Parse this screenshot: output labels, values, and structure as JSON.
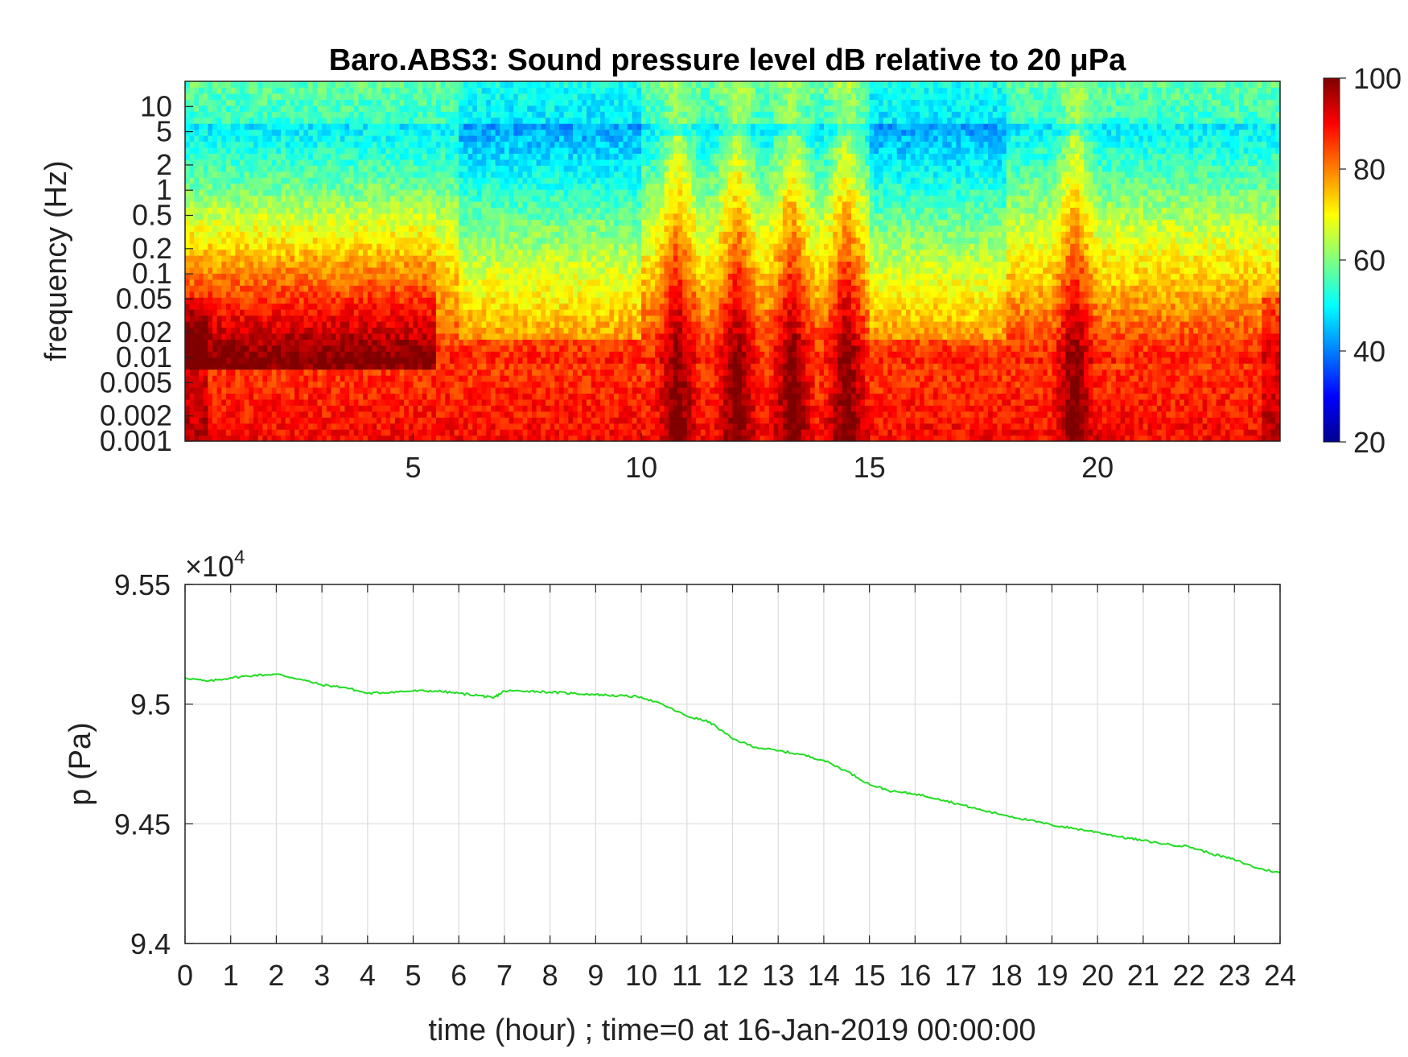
{
  "figure": {
    "background": "#ffffff"
  },
  "chart_data": [
    {
      "type": "heatmap",
      "title": "Baro.ABS3: Sound pressure level dB relative to 20 μPa",
      "xlabel": "",
      "ylabel": "frequency (Hz)",
      "xlim": [
        0,
        24
      ],
      "ylim": [
        0.001,
        20
      ],
      "yscale": "log",
      "x_ticks": [
        5,
        10,
        15,
        20
      ],
      "x_tick_labels": [
        "5",
        "10",
        "15",
        "20"
      ],
      "y_ticks": [
        0.001,
        0.002,
        0.005,
        0.01,
        0.02,
        0.05,
        0.1,
        0.2,
        0.5,
        1,
        2,
        5,
        10
      ],
      "y_tick_labels": [
        "0.001",
        "0.002",
        "0.005",
        "0.01",
        "0.02",
        "0.05",
        "0.1",
        "0.2",
        "0.5",
        "1",
        "2",
        "5",
        "10"
      ],
      "colormap": "jet",
      "colorbar": {
        "range": [
          20,
          100
        ],
        "ticks": [
          20,
          40,
          60,
          80,
          100
        ],
        "tick_labels": [
          "20",
          "40",
          "60",
          "80",
          "100"
        ]
      },
      "features": {
        "high_energy_band_below_hz": 0.005,
        "quiet_periods_hours": [
          [
            6,
            10
          ],
          [
            15,
            18
          ]
        ],
        "broadband_bursts_hours": [
          10.8,
          12.1,
          13.3,
          14.5,
          19.5
        ]
      },
      "grid": false
    },
    {
      "type": "line",
      "title": "",
      "xlabel": "time (hour) ; time=0 at 16-Jan-2019 00:00:00",
      "ylabel": "p (Pa)",
      "y_multiplier_label": "×10",
      "y_multiplier_exponent": "4",
      "xlim": [
        0,
        24
      ],
      "ylim": [
        9.4,
        9.55
      ],
      "x_ticks": [
        0,
        1,
        2,
        3,
        4,
        5,
        6,
        7,
        8,
        9,
        10,
        11,
        12,
        13,
        14,
        15,
        16,
        17,
        18,
        19,
        20,
        21,
        22,
        23,
        24
      ],
      "x_tick_labels": [
        "0",
        "1",
        "2",
        "3",
        "4",
        "5",
        "6",
        "7",
        "8",
        "9",
        "10",
        "11",
        "12",
        "13",
        "14",
        "15",
        "16",
        "17",
        "18",
        "19",
        "20",
        "21",
        "22",
        "23",
        "24"
      ],
      "y_ticks": [
        9.4,
        9.45,
        9.5,
        9.55
      ],
      "y_tick_labels": [
        "9.4",
        "9.45",
        "9.5",
        "9.55"
      ],
      "grid": true,
      "series": [
        {
          "color": "#22dd22",
          "x": [
            0,
            0.5,
            1,
            1.5,
            2,
            2.5,
            3,
            3.5,
            4,
            4.5,
            5,
            5.5,
            6,
            6.5,
            6.75,
            7,
            7.5,
            8,
            8.5,
            9,
            9.5,
            10,
            10.5,
            11,
            11.5,
            12,
            12.5,
            13,
            13.5,
            14,
            14.5,
            15,
            15.5,
            16,
            16.5,
            17,
            17.5,
            18,
            18.5,
            19,
            19.5,
            20,
            20.5,
            21,
            21.5,
            22,
            22.5,
            23,
            23.5,
            24
          ],
          "y": [
            9.511,
            9.5095,
            9.511,
            9.512,
            9.5125,
            9.5105,
            9.508,
            9.507,
            9.5045,
            9.505,
            9.5055,
            9.5055,
            9.5045,
            9.5035,
            9.5025,
            9.5055,
            9.5055,
            9.505,
            9.5045,
            9.504,
            9.5035,
            9.503,
            9.4995,
            9.495,
            9.4925,
            9.4855,
            9.482,
            9.4805,
            9.479,
            9.4765,
            9.472,
            9.4665,
            9.4635,
            9.4625,
            9.4605,
            9.458,
            9.4555,
            9.4535,
            9.4515,
            9.4495,
            9.448,
            9.4465,
            9.4445,
            9.443,
            9.4415,
            9.4405,
            9.4375,
            9.435,
            9.4315,
            9.4295
          ]
        }
      ]
    }
  ]
}
